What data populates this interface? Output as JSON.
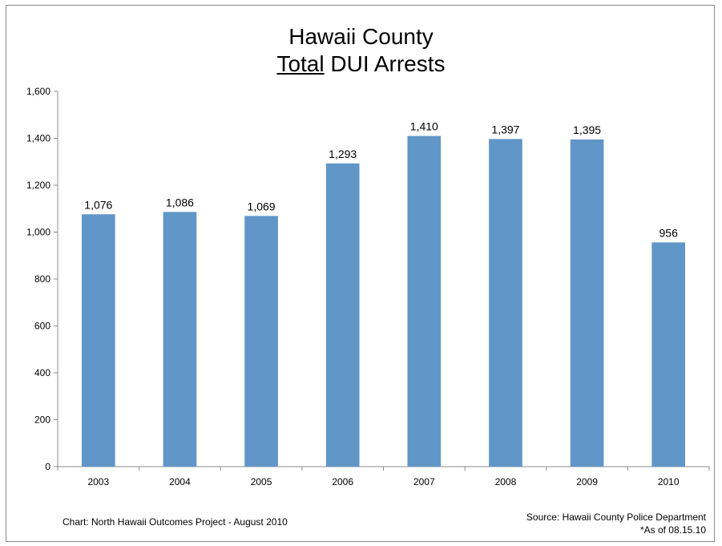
{
  "chart_data": {
    "type": "bar",
    "title_line1": "Hawaii County",
    "title_underlined": "Total",
    "title_rest": " DUI Arrests",
    "categories": [
      "2003",
      "2004",
      "2005",
      "2006",
      "2007",
      "2008",
      "2009",
      "2010"
    ],
    "values": [
      1076,
      1086,
      1069,
      1293,
      1410,
      1397,
      1395,
      956
    ],
    "value_labels": [
      "1,076",
      "1,086",
      "1,069",
      "1,293",
      "1,410",
      "1,397",
      "1,395",
      "956"
    ],
    "ylim": [
      0,
      1600
    ],
    "yticks": [
      0,
      200,
      400,
      600,
      800,
      1000,
      1200,
      1400,
      1600
    ],
    "ytick_labels": [
      "0",
      "200",
      "400",
      "600",
      "800",
      "1,000",
      "1,200",
      "1,400",
      "1,600"
    ],
    "bar_color": "#6096c8",
    "grid": false,
    "legend": false
  },
  "footer": {
    "left": "Chart:  North Hawaii Outcomes Project - August 2010",
    "right_line1": "Source:  Hawaii County Police Department",
    "right_line2": "*As of 08.15.10"
  }
}
